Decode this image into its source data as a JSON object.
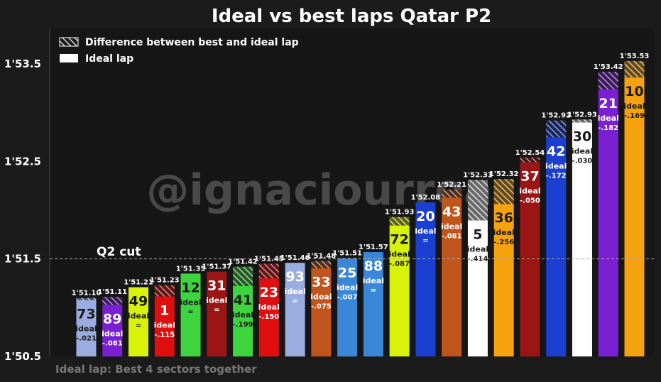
{
  "chart_data": {
    "type": "bar",
    "title": "Ideal vs best laps Qatar P2",
    "footnote": "Ideal lap: Best 4 sectors together",
    "watermark": "@ignaciourrea",
    "ylim": [
      110.5,
      113.8
    ],
    "yticks": [
      {
        "value": 110.5,
        "label": "1'50.5"
      },
      {
        "value": 111.5,
        "label": "1'51.5"
      },
      {
        "value": 112.5,
        "label": "1'52.5"
      },
      {
        "value": 113.5,
        "label": "1'53.5"
      }
    ],
    "reference_line": {
      "label": "Q2 cut",
      "value": 111.5
    },
    "legend": {
      "placement": "top-left",
      "items": [
        {
          "label": "Difference between best and ideal lap",
          "style": "hatched"
        },
        {
          "label": "Ideal lap",
          "style": "solid"
        }
      ]
    },
    "bars": [
      {
        "driver": "73",
        "best": 111.1,
        "best_label": "1'51.10",
        "diff": 0.021,
        "diff_label": "-.021",
        "color": "#9bade0",
        "text_color": "#1a1a1a"
      },
      {
        "driver": "89",
        "best": 111.11,
        "best_label": "1'51.11",
        "diff": 0.081,
        "diff_label": "-.081",
        "color": "#7a1fd1",
        "text_color": "#ffffff"
      },
      {
        "driver": "49",
        "best": 111.21,
        "best_label": "1'51.21",
        "diff": 0,
        "diff_label": "=",
        "color": "#d9f20a",
        "text_color": "#1a1a1a"
      },
      {
        "driver": "1",
        "best": 111.23,
        "best_label": "1'51.23",
        "diff": 0.115,
        "diff_label": "-.115",
        "color": "#e00f0f",
        "text_color": "#ffffff"
      },
      {
        "driver": "12",
        "best": 111.35,
        "best_label": "1'51.35",
        "diff": 0,
        "diff_label": "=",
        "color": "#3ed43e",
        "text_color": "#1a1a1a"
      },
      {
        "driver": "31",
        "best": 111.37,
        "best_label": "1'51.37",
        "diff": 0,
        "diff_label": "=",
        "color": "#9b1515",
        "text_color": "#ffffff"
      },
      {
        "driver": "41",
        "best": 111.42,
        "best_label": "1'51.42",
        "diff": 0.199,
        "diff_label": "-.199",
        "color": "#3ed43e",
        "text_color": "#1a1a1a"
      },
      {
        "driver": "23",
        "best": 111.45,
        "best_label": "1'51.45",
        "diff": 0.15,
        "diff_label": "-.150",
        "color": "#e00f0f",
        "text_color": "#ffffff"
      },
      {
        "driver": "93",
        "best": 111.46,
        "best_label": "1'51.46",
        "diff": 0,
        "diff_label": "=",
        "color": "#9bade0",
        "text_color": "#ffffff"
      },
      {
        "driver": "33",
        "best": 111.48,
        "best_label": "1'51.48",
        "diff": 0.075,
        "diff_label": "-.075",
        "color": "#c0561c",
        "text_color": "#ffffff"
      },
      {
        "driver": "25",
        "best": 111.51,
        "best_label": "1'51.51",
        "diff": 0.007,
        "diff_label": "-.007",
        "color": "#3a86d8",
        "text_color": "#ffffff"
      },
      {
        "driver": "88",
        "best": 111.57,
        "best_label": "1'51.57",
        "diff": 0,
        "diff_label": "=",
        "color": "#3a86d8",
        "text_color": "#ffffff"
      },
      {
        "driver": "72",
        "best": 111.93,
        "best_label": "1'51.93",
        "diff": 0.087,
        "diff_label": "-.087",
        "color": "#d9f20a",
        "text_color": "#1a1a1a"
      },
      {
        "driver": "20",
        "best": 112.08,
        "best_label": "1'52.08",
        "diff": 0,
        "diff_label": "=",
        "color": "#1a3fd1",
        "text_color": "#ffffff"
      },
      {
        "driver": "43",
        "best": 112.21,
        "best_label": "1'52.21",
        "diff": 0.081,
        "diff_label": "-.081",
        "color": "#c0561c",
        "text_color": "#ffffff"
      },
      {
        "driver": "5",
        "best": 112.31,
        "best_label": "1'52.31",
        "diff": 0.414,
        "diff_label": "-.414",
        "color": "#ffffff",
        "text_color": "#1a1a1a"
      },
      {
        "driver": "36",
        "best": 112.32,
        "best_label": "1'52.32",
        "diff": 0.256,
        "diff_label": "-.256",
        "color": "#f5a20e",
        "text_color": "#1a1a1a"
      },
      {
        "driver": "37",
        "best": 112.54,
        "best_label": "1'52.54",
        "diff": 0.05,
        "diff_label": "-.050",
        "color": "#9b1515",
        "text_color": "#ffffff"
      },
      {
        "driver": "42",
        "best": 112.92,
        "best_label": "1'52.92",
        "diff": 0.172,
        "diff_label": "-.172",
        "color": "#1a3fd1",
        "text_color": "#ffffff"
      },
      {
        "driver": "30",
        "best": 112.93,
        "best_label": "1'52.93",
        "diff": 0.03,
        "diff_label": "-.030",
        "color": "#ffffff",
        "text_color": "#1a1a1a"
      },
      {
        "driver": "21",
        "best": 113.42,
        "best_label": "1'53.42",
        "diff": 0.182,
        "diff_label": "-.182",
        "color": "#7a1fd1",
        "text_color": "#ffffff"
      },
      {
        "driver": "10",
        "best": 113.53,
        "best_label": "1'53.53",
        "diff": 0.169,
        "diff_label": "-.169",
        "color": "#f5a20e",
        "text_color": "#1a1a1a"
      }
    ],
    "ideal_word": "ideal"
  }
}
